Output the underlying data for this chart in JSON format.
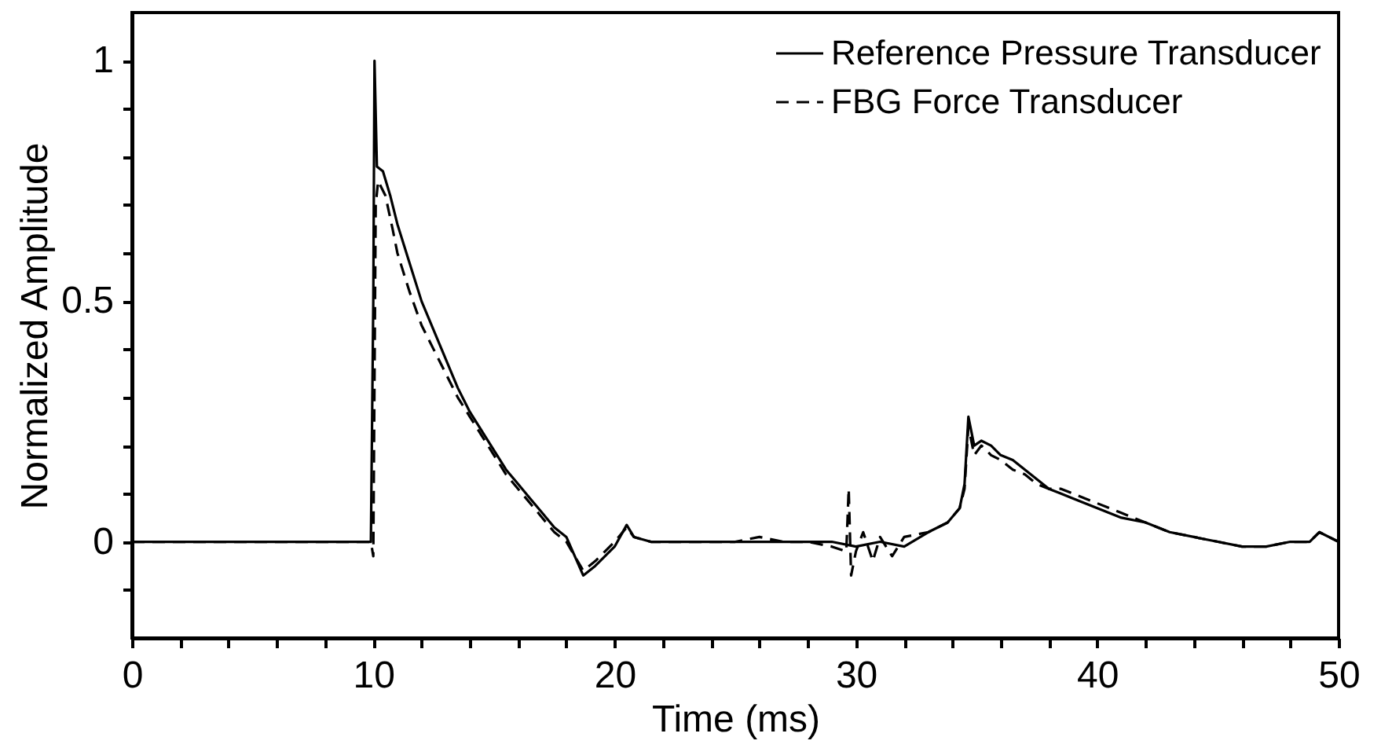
{
  "chart_data": {
    "type": "line",
    "xlabel": "Time (ms)",
    "ylabel": "Normalized Amplitude",
    "xlim": [
      0,
      50
    ],
    "ylim": [
      -0.2,
      1.1
    ],
    "xticks": [
      0,
      {
        "value": 2,
        "label": null
      },
      {
        "value": 4,
        "label": null
      },
      {
        "value": 6,
        "label": null
      },
      {
        "value": 8,
        "label": null
      },
      10,
      {
        "value": 12,
        "label": null
      },
      {
        "value": 14,
        "label": null
      },
      {
        "value": 16,
        "label": null
      },
      {
        "value": 18,
        "label": null
      },
      20,
      {
        "value": 22,
        "label": null
      },
      {
        "value": 24,
        "label": null
      },
      {
        "value": 26,
        "label": null
      },
      {
        "value": 28,
        "label": null
      },
      30,
      {
        "value": 32,
        "label": null
      },
      {
        "value": 34,
        "label": null
      },
      {
        "value": 36,
        "label": null
      },
      {
        "value": 38,
        "label": null
      },
      40,
      {
        "value": 42,
        "label": null
      },
      {
        "value": 44,
        "label": null
      },
      {
        "value": 46,
        "label": null
      },
      {
        "value": 48,
        "label": null
      },
      50
    ],
    "yticks": [
      {
        "value": -0.1,
        "label": null
      },
      0,
      {
        "value": 0.1,
        "label": null
      },
      {
        "value": 0.2,
        "label": null
      },
      {
        "value": 0.3,
        "label": null
      },
      {
        "value": 0.4,
        "label": null
      },
      0.5,
      {
        "value": 0.6,
        "label": null
      },
      {
        "value": 0.7,
        "label": null
      },
      {
        "value": 0.8,
        "label": null
      },
      {
        "value": 0.9,
        "label": null
      },
      1
    ],
    "grid": false,
    "legend": "top right",
    "marker": "none",
    "series": [
      {
        "name": "Reference Pressure Transducer",
        "color": "#000000",
        "line_style": "solid",
        "x": [
          0,
          2,
          4,
          6,
          8,
          9.9,
          10.0,
          10.05,
          10.15,
          10.4,
          10.7,
          11,
          11.5,
          12,
          12.5,
          13,
          13.5,
          14,
          14.5,
          15,
          15.5,
          16,
          16.5,
          17,
          17.5,
          18,
          18.7,
          19.2,
          19.6,
          20,
          20.5,
          20.8,
          21.5,
          22,
          23,
          24,
          25,
          26,
          27,
          28,
          29,
          30,
          31,
          32,
          33,
          33.8,
          34.3,
          34.5,
          34.66,
          34.9,
          35.2,
          35.6,
          36,
          36.5,
          37,
          37.5,
          38,
          38.5,
          39,
          40,
          41,
          42,
          43,
          44,
          45,
          46,
          47,
          48,
          48.8,
          49.2,
          50
        ],
        "values": [
          0,
          0,
          0,
          0,
          0,
          0,
          0.5,
          1.0,
          0.78,
          0.77,
          0.72,
          0.66,
          0.58,
          0.5,
          0.44,
          0.38,
          0.32,
          0.27,
          0.23,
          0.19,
          0.15,
          0.12,
          0.09,
          0.06,
          0.03,
          0.01,
          -0.07,
          -0.05,
          -0.03,
          -0.01,
          0.035,
          0.01,
          0.0,
          0.0,
          0.0,
          0.0,
          0.0,
          0.0,
          0.0,
          0.0,
          0.0,
          -0.01,
          0.0,
          -0.01,
          0.02,
          0.04,
          0.07,
          0.12,
          0.26,
          0.2,
          0.21,
          0.2,
          0.18,
          0.17,
          0.15,
          0.13,
          0.11,
          0.1,
          0.09,
          0.07,
          0.05,
          0.04,
          0.02,
          0.01,
          0.0,
          -0.01,
          -0.01,
          0.0,
          0.0,
          0.02,
          0.0
        ]
      },
      {
        "name": "FBG Force Transducer",
        "color": "#000000",
        "line_style": "dashed",
        "x": [
          0,
          2,
          4,
          6,
          8,
          9.9,
          10.0,
          10.1,
          10.2,
          10.5,
          10.8,
          11,
          11.5,
          12,
          12.5,
          13,
          13.5,
          14,
          14.5,
          15,
          15.5,
          16,
          16.5,
          17,
          17.5,
          18,
          18.7,
          19.2,
          19.6,
          20,
          20.5,
          20.8,
          21.5,
          22,
          23,
          24,
          25,
          26,
          27,
          28,
          29,
          29.6,
          29.7,
          29.8,
          30,
          30.3,
          30.7,
          31,
          31.5,
          32,
          33,
          33.8,
          34.3,
          34.5,
          34.66,
          34.9,
          35.2,
          35.6,
          36,
          36.5,
          37,
          37.5,
          38,
          38.5,
          39,
          39.5,
          40,
          41,
          42,
          43,
          44,
          45,
          46,
          47,
          48,
          48.8,
          49.2,
          50
        ],
        "values": [
          0,
          0,
          0,
          0,
          0,
          0,
          -0.03,
          0.7,
          0.75,
          0.72,
          0.65,
          0.6,
          0.52,
          0.45,
          0.4,
          0.35,
          0.3,
          0.26,
          0.22,
          0.18,
          0.14,
          0.11,
          0.08,
          0.05,
          0.02,
          0.0,
          -0.06,
          -0.04,
          -0.02,
          0.0,
          0.03,
          0.01,
          0.0,
          0.0,
          0.0,
          0.0,
          0.0,
          0.01,
          0.0,
          0.0,
          -0.01,
          -0.02,
          0.11,
          -0.07,
          -0.02,
          0.02,
          -0.04,
          0.01,
          -0.03,
          0.01,
          0.02,
          0.04,
          0.07,
          0.11,
          0.24,
          0.18,
          0.2,
          0.18,
          0.17,
          0.15,
          0.14,
          0.12,
          0.11,
          0.11,
          0.1,
          0.09,
          0.08,
          0.06,
          0.04,
          0.02,
          0.01,
          0.0,
          -0.01,
          -0.01,
          0.0,
          0.0,
          0.02,
          0.0
        ]
      }
    ]
  }
}
